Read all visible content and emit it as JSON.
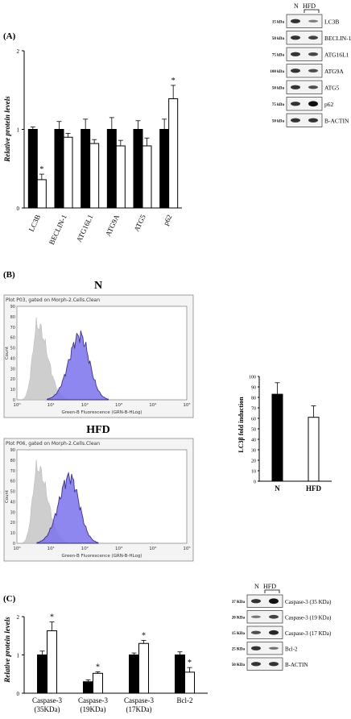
{
  "panel_a": {
    "label": "(A)",
    "chart_data": {
      "type": "bar",
      "ylabel": "Relative protein levels",
      "ylim": [
        0,
        2
      ],
      "yticks": [
        0,
        1,
        2
      ],
      "categories": [
        "LC3B",
        "BECLIN-1",
        "ATG16L1",
        "ATG9A",
        "ATG5",
        "p62"
      ],
      "series": [
        {
          "color": "#000000",
          "values": [
            1.0,
            1.0,
            1.0,
            1.0,
            1.0,
            1.0
          ],
          "errors": [
            0.03,
            0.1,
            0.13,
            0.15,
            0.11,
            0.13
          ]
        },
        {
          "color": "#ffffff",
          "values": [
            0.36,
            0.9,
            0.82,
            0.79,
            0.79,
            1.39
          ],
          "errors": [
            0.07,
            0.05,
            0.05,
            0.07,
            0.1,
            0.17
          ]
        }
      ],
      "significance": [
        {
          "category": 0,
          "series": 1,
          "mark": "*"
        },
        {
          "category": 5,
          "series": 1,
          "mark": "*"
        }
      ]
    },
    "blot": {
      "groups": [
        "N",
        "HFD"
      ],
      "rows": [
        {
          "kda": "15 kDa",
          "protein": "LC3B",
          "ratio": [
            1.0,
            0.45
          ]
        },
        {
          "kda": "50 kDa",
          "protein": "BECLIN-1",
          "ratio": [
            1.0,
            0.9
          ]
        },
        {
          "kda": "75 kDa",
          "protein": "ATG16L1",
          "ratio": [
            1.0,
            0.85
          ]
        },
        {
          "kda": "100 kDa",
          "protein": "ATG9A",
          "ratio": [
            1.0,
            0.8
          ]
        },
        {
          "kda": "50 kDa",
          "protein": "ATG5",
          "ratio": [
            1.0,
            0.8
          ]
        },
        {
          "kda": "75 kDa",
          "protein": "p62",
          "ratio": [
            1.0,
            1.3
          ]
        },
        {
          "kda": "50 kDa",
          "protein": "B-ACTIN",
          "ratio": [
            1.0,
            1.0
          ]
        }
      ]
    }
  },
  "panel_b": {
    "label": "(B)",
    "histograms": [
      {
        "heading": "N",
        "plot_title": "Plot P03, gated on Morph-2.Cells.Clean",
        "xlabel": "Green-B Fluorescence (GRN-B-HLog)",
        "ylabel": "Count",
        "yticks": [
          0,
          10,
          20,
          30,
          40,
          50,
          60,
          70,
          80,
          90
        ],
        "xtick_labels": [
          "10⁰",
          "10¹",
          "10²",
          "10³",
          "10⁴",
          "10⁵"
        ],
        "grey_peak": [
          0.6,
          72
        ],
        "blue_peak": [
          1.85,
          62
        ]
      },
      {
        "heading": "HFD",
        "plot_title": "Plot P06, gated on Morph-2.Cells.Clean",
        "xlabel": "Green-B Fluorescence (GRN-B-HLog)",
        "ylabel": "Count",
        "yticks": [
          0,
          10,
          20,
          30,
          40,
          50,
          60,
          70,
          80,
          90
        ],
        "xtick_labels": [
          "10⁰",
          "10¹",
          "10²",
          "10³",
          "10⁴",
          "10⁵"
        ],
        "grey_peak": [
          0.6,
          73
        ],
        "blue_peak": [
          1.55,
          64
        ]
      }
    ],
    "chart_data": {
      "type": "bar",
      "ylabel": "LC3β fold induction",
      "ylim": [
        0,
        100
      ],
      "yticks": [
        0,
        10,
        20,
        30,
        40,
        50,
        60,
        70,
        80,
        90,
        100
      ],
      "categories": [
        "N",
        "HFD"
      ],
      "values": [
        83,
        61
      ],
      "errors": [
        11,
        11
      ],
      "colors": [
        "#000000",
        "#ffffff"
      ]
    }
  },
  "panel_c": {
    "label": "(C)",
    "chart_data": {
      "type": "bar",
      "ylabel": "Relative protein levels",
      "ylim": [
        0,
        2
      ],
      "yticks": [
        0,
        1,
        2
      ],
      "categories": [
        "Caspase-3|(35KDa)",
        "Caspase-3|(19KDa)",
        "Caspase-3|(17KDa)",
        "Bcl-2"
      ],
      "series": [
        {
          "color": "#000000",
          "values": [
            1.0,
            0.3,
            1.0,
            1.0
          ],
          "errors": [
            0.1,
            0.05,
            0.05,
            0.08
          ]
        },
        {
          "color": "#ffffff",
          "values": [
            1.63,
            0.52,
            1.3,
            0.55
          ],
          "errors": [
            0.23,
            0.04,
            0.08,
            0.12
          ]
        }
      ],
      "significance": [
        {
          "category": 0,
          "series": 1,
          "mark": "*"
        },
        {
          "category": 1,
          "series": 1,
          "mark": "*"
        },
        {
          "category": 2,
          "series": 1,
          "mark": "*"
        },
        {
          "category": 3,
          "series": 1,
          "mark": "*"
        }
      ]
    },
    "blot": {
      "groups": [
        "N",
        "HFD"
      ],
      "rows": [
        {
          "kda": "37 KDa",
          "protein": "Caspase-3 (35 KDa)",
          "ratio": [
            1.0,
            1.5
          ]
        },
        {
          "kda": "20 KDa",
          "protein": "Caspase-3 (19 KDa)",
          "ratio": [
            0.5,
            0.9
          ]
        },
        {
          "kda": "15 KDa",
          "protein": "Caspase-3 (17 KDa)",
          "ratio": [
            0.8,
            1.1
          ]
        },
        {
          "kda": "25 KDa",
          "protein": "Bcl-2",
          "ratio": [
            1.0,
            0.55
          ]
        },
        {
          "kda": "50 KDa",
          "protein": "B-ACTIN",
          "ratio": [
            1.0,
            1.0
          ]
        }
      ]
    }
  }
}
